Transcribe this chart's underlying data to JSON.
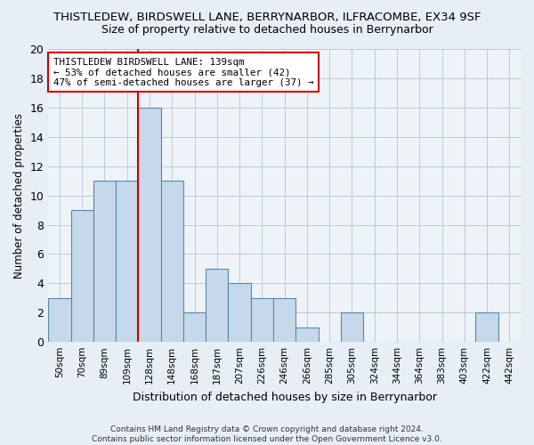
{
  "title": "THISTLEDEW, BIRDSWELL LANE, BERRYNARBOR, ILFRACOMBE, EX34 9SF",
  "subtitle": "Size of property relative to detached houses in Berrynarbor",
  "xlabel": "Distribution of detached houses by size in Berrynarbor",
  "ylabel": "Number of detached properties",
  "bar_labels": [
    "50sqm",
    "70sqm",
    "89sqm",
    "109sqm",
    "128sqm",
    "148sqm",
    "168sqm",
    "187sqm",
    "207sqm",
    "226sqm",
    "246sqm",
    "266sqm",
    "285sqm",
    "305sqm",
    "324sqm",
    "344sqm",
    "364sqm",
    "383sqm",
    "403sqm",
    "422sqm",
    "442sqm"
  ],
  "bar_values": [
    3,
    9,
    11,
    11,
    16,
    11,
    2,
    5,
    4,
    3,
    3,
    1,
    0,
    2,
    0,
    0,
    0,
    0,
    0,
    2,
    0
  ],
  "bar_color": "#c6d9ea",
  "bar_edge_color": "#5588aa",
  "vline_x": 3.5,
  "vline_color": "#cc0000",
  "annotation_text": "THISTLEDEW BIRDSWELL LANE: 139sqm\n← 53% of detached houses are smaller (42)\n47% of semi-detached houses are larger (37) →",
  "annotation_box_color": "#ffffff",
  "annotation_box_edge": "#cc0000",
  "ylim": [
    0,
    20
  ],
  "yticks": [
    0,
    2,
    4,
    6,
    8,
    10,
    12,
    14,
    16,
    18,
    20
  ],
  "footer": "Contains HM Land Registry data © Crown copyright and database right 2024.\nContains public sector information licensed under the Open Government Licence v3.0.",
  "bg_color": "#e8eef5",
  "plot_bg_color": "#eef3f8",
  "title_fontsize": 9.5,
  "subtitle_fontsize": 9,
  "annot_fontsize": 7.8
}
